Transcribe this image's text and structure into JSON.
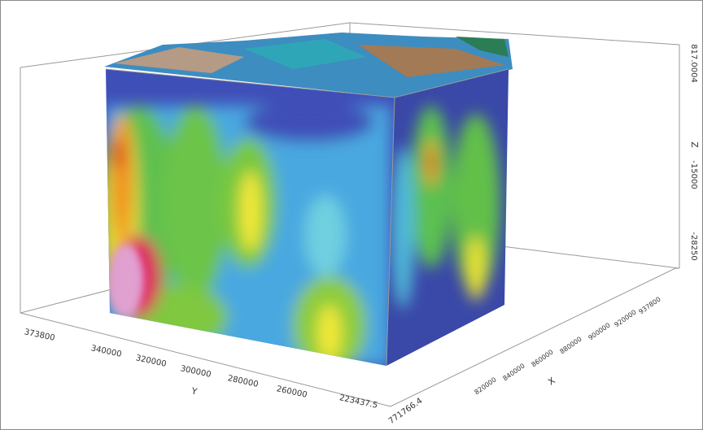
{
  "axes": {
    "y": {
      "label": "Y",
      "ticks": [
        "373800",
        "340000",
        "320000",
        "300000",
        "280000",
        "260000",
        "223437.5"
      ]
    },
    "x": {
      "label": "X",
      "ticks": [
        "771766.4",
        "820000",
        "840000",
        "860000",
        "880000",
        "900000",
        "920000",
        "937800"
      ]
    },
    "z": {
      "label": "Z",
      "ticks": [
        "817.0004",
        "-15000",
        "-28250"
      ]
    }
  }
}
